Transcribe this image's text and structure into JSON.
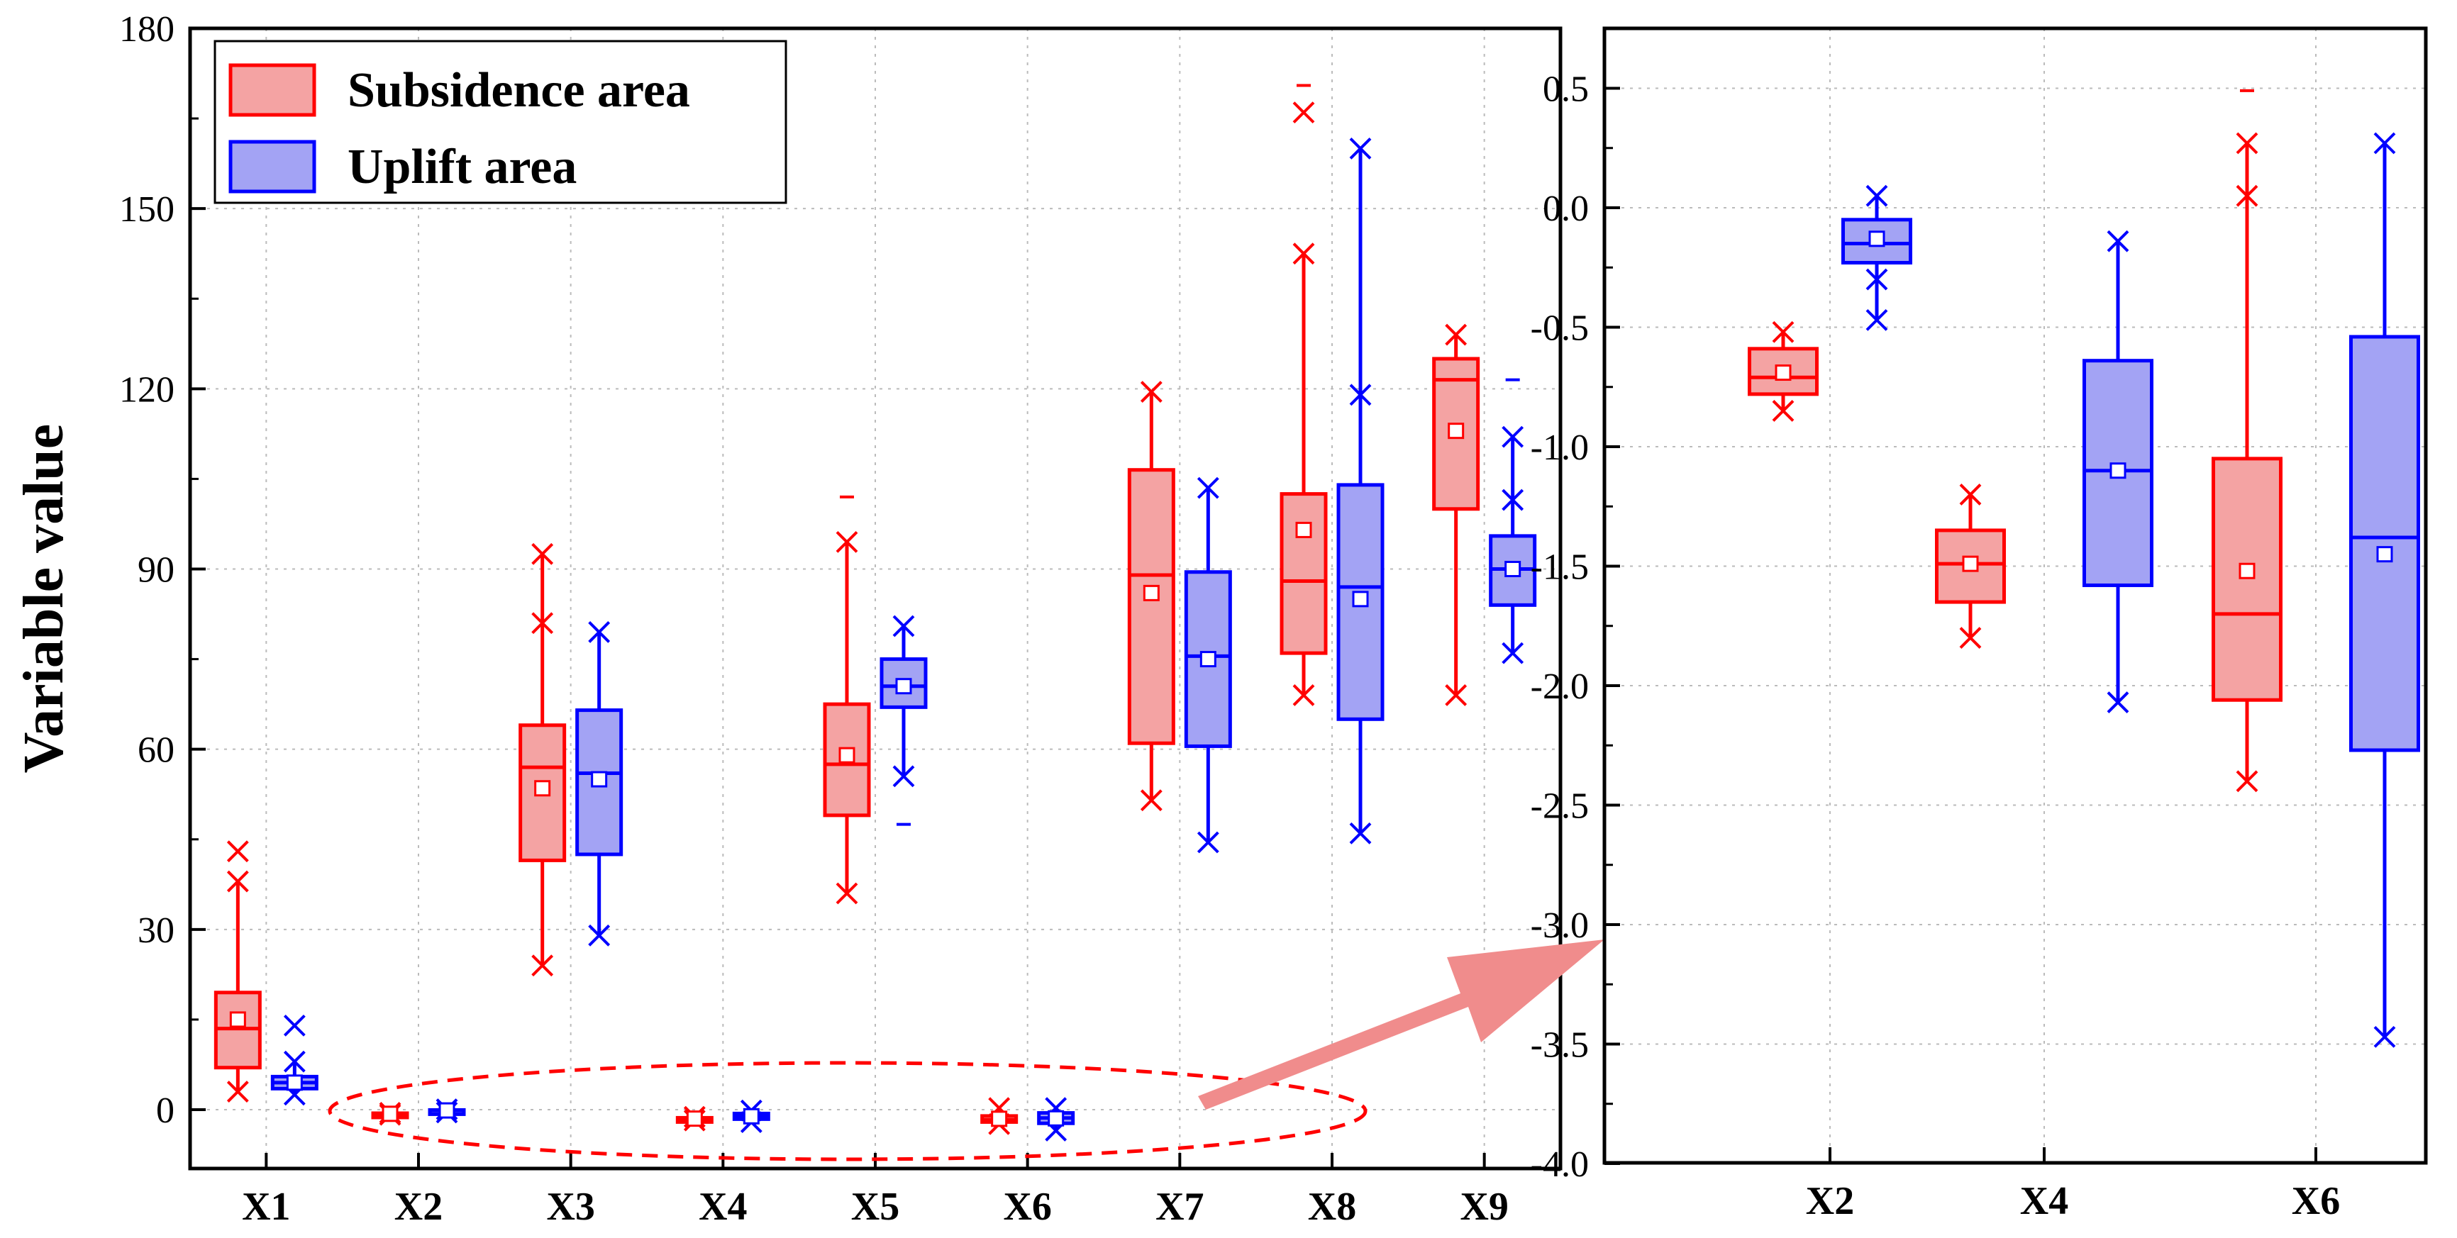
{
  "chart_data": [
    {
      "type": "box",
      "panel": "main",
      "ylabel": "Variable value",
      "xlabel": "",
      "ylim": [
        -9,
        180
      ],
      "yticks": [
        0,
        30,
        60,
        90,
        120,
        150,
        180
      ],
      "grid": true,
      "legend_position": "top-left",
      "categories": [
        "X1",
        "X2",
        "X3",
        "X4",
        "X5",
        "X6",
        "X7",
        "X8",
        "X9"
      ],
      "series": [
        {
          "name": "Subsidence area",
          "color": "#ff0000",
          "fill": "#f4a3a3",
          "boxes": [
            {
              "cat": "X1",
              "min": 3,
              "q1": 7,
              "median": 13.5,
              "q3": 19.5,
              "max": 38,
              "mean": 15,
              "outliers_x": [
                43
              ],
              "outliers_dash": []
            },
            {
              "cat": "X2",
              "min": -0.85,
              "q1": -0.78,
              "median": -0.71,
              "q3": -0.59,
              "max": -0.52,
              "mean": -0.69,
              "outliers_x": [],
              "outliers_dash": []
            },
            {
              "cat": "X3",
              "min": 24,
              "q1": 41.5,
              "median": 57,
              "q3": 64,
              "max": 92.5,
              "mean": 53.5,
              "outliers_x": [
                81
              ],
              "outliers_dash": []
            },
            {
              "cat": "X4",
              "min": -1.8,
              "q1": -1.65,
              "median": -1.49,
              "q3": -1.35,
              "max": -1.2,
              "mean": -1.49,
              "outliers_x": [],
              "outliers_dash": []
            },
            {
              "cat": "X5",
              "min": 36,
              "q1": 49,
              "median": 57.5,
              "q3": 67.5,
              "max": 94.5,
              "mean": 59,
              "outliers_x": [],
              "outliers_dash": [
                102
              ]
            },
            {
              "cat": "X6",
              "min": -2.4,
              "q1": -2.06,
              "median": -1.7,
              "q3": -1.05,
              "max": 0.27,
              "mean": -1.52,
              "outliers_x": [],
              "outliers_dash": []
            },
            {
              "cat": "X7",
              "min": 51.5,
              "q1": 61,
              "median": 89,
              "q3": 106.5,
              "max": 119.5,
              "mean": 86,
              "outliers_x": [],
              "outliers_dash": []
            },
            {
              "cat": "X8",
              "min": 69,
              "q1": 76,
              "median": 88,
              "q3": 102.5,
              "max": 142.5,
              "mean": 96.5,
              "outliers_x": [
                166
              ],
              "outliers_dash": [
                170.5
              ]
            },
            {
              "cat": "X9",
              "min": 69,
              "q1": 100,
              "median": 121.5,
              "q3": 125,
              "max": 129,
              "mean": 113,
              "outliers_x": [],
              "outliers_dash": []
            }
          ]
        },
        {
          "name": "Uplift area",
          "color": "#0000ff",
          "fill": "#a3a3f4",
          "boxes": [
            {
              "cat": "X1",
              "min": 2.5,
              "q1": 3.5,
              "median": 4.5,
              "q3": 5.5,
              "max": 8,
              "mean": 4.5,
              "outliers_x": [
                14
              ],
              "outliers_dash": []
            },
            {
              "cat": "X2",
              "min": -0.47,
              "q1": -0.23,
              "median": -0.15,
              "q3": -0.05,
              "max": 0.05,
              "mean": -0.13,
              "outliers_x": [],
              "outliers_dash": []
            },
            {
              "cat": "X3",
              "min": 29,
              "q1": 42.5,
              "median": 56,
              "q3": 66.5,
              "max": 79.5,
              "mean": 55,
              "outliers_x": [],
              "outliers_dash": []
            },
            {
              "cat": "X4",
              "min": -2.07,
              "q1": -1.58,
              "median": -1.1,
              "q3": -0.64,
              "max": -0.14,
              "mean": -1.1,
              "outliers_x": [],
              "outliers_dash": []
            },
            {
              "cat": "X5",
              "min": 55.5,
              "q1": 67,
              "median": 70.5,
              "q3": 75,
              "max": 80.5,
              "mean": 70.5,
              "outliers_x": [],
              "outliers_dash": [
                47.5
              ]
            },
            {
              "cat": "X6",
              "min": -3.47,
              "q1": -2.27,
              "median": -1.38,
              "q3": -0.54,
              "max": 0.27,
              "mean": -1.45,
              "outliers_x": [],
              "outliers_dash": []
            },
            {
              "cat": "X7",
              "min": 44.5,
              "q1": 60.5,
              "median": 75.5,
              "q3": 89.5,
              "max": 103.5,
              "mean": 75,
              "outliers_x": [],
              "outliers_dash": []
            },
            {
              "cat": "X8",
              "min": 46,
              "q1": 65,
              "median": 87,
              "q3": 104,
              "max": 160,
              "mean": 85,
              "outliers_x": [
                119
              ],
              "outliers_dash": []
            },
            {
              "cat": "X9",
              "min": 76,
              "q1": 84,
              "median": 90,
              "q3": 95.5,
              "max": 112,
              "mean": 90,
              "outliers_x": [
                101.5
              ],
              "outliers_dash": [
                121.5
              ]
            }
          ]
        }
      ],
      "annotations": [
        "dashed ellipse around X2, X4, X6",
        "arrow pointing to zoomed panel"
      ]
    },
    {
      "type": "box",
      "panel": "zoom",
      "ylim": [
        -4.0,
        0.7
      ],
      "yticks": [
        0.5,
        0.0,
        -0.5,
        -1.0,
        -1.5,
        -2.0,
        -2.5,
        -3.0,
        -3.5,
        -4.0
      ],
      "ytick_labels": [
        "0.5",
        "0.0",
        "-0.5",
        "-1.0",
        "-1.5",
        "-2.0",
        "-2.5",
        "-3.0",
        "-3.5",
        "-4.0"
      ],
      "grid": true,
      "categories": [
        "X2",
        "X4",
        "X6"
      ],
      "zoom_outliers": [
        {
          "series": "Subsidence area",
          "cat": "X6",
          "outliers_x": [
            0.05
          ],
          "outliers_dash": [
            0.49
          ]
        },
        {
          "series": "Uplift area",
          "cat": "X2",
          "outliers_x": [
            -0.3
          ],
          "outliers_dash": []
        }
      ]
    }
  ],
  "legend": {
    "items": [
      {
        "label": "Subsidence area",
        "color": "#ff0000",
        "fill": "#f4a3a3"
      },
      {
        "label": "Uplift area",
        "color": "#0000ff",
        "fill": "#a3a3f4"
      }
    ]
  },
  "main_tick_labels": [
    "180",
    "150",
    "120",
    "90",
    "60",
    "30",
    "0"
  ],
  "main_categories": [
    "X1",
    "X2",
    "X3",
    "X4",
    "X5",
    "X6",
    "X7",
    "X8",
    "X9"
  ],
  "zoom_categories": [
    "X2",
    "X4",
    "X6"
  ],
  "y_axis_title": "Variable value"
}
